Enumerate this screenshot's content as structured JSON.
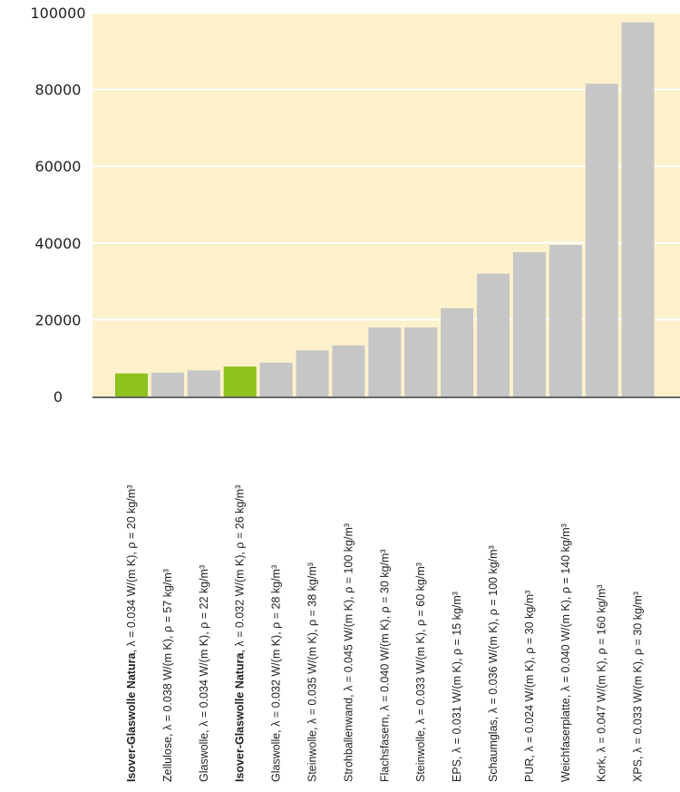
{
  "chart_data": {
    "type": "bar",
    "title": "",
    "xlabel": "",
    "ylabel": "",
    "ylim": [
      0,
      100000
    ],
    "yticks": [
      "0",
      "20000",
      "40000",
      "60000",
      "80000",
      "100000"
    ],
    "grid": true,
    "colors": {
      "background": "#FCF1CB",
      "bar_default": "#C6C6C6",
      "bar_highlight": "#8DC21F",
      "grid": "#FFFFFF",
      "axis": "#333333"
    },
    "categories": [
      {
        "name": "Isover-Glaswolle Natura",
        "props": ", λ = 0.034 W/(m K), ρ = 20 kg/m³",
        "highlight": true
      },
      {
        "name": "Zellulose",
        "props": ", λ = 0.038 W/(m K), ρ = 57 kg/m³",
        "highlight": false
      },
      {
        "name": "Glaswolle",
        "props": ", λ = 0.034 W/(m K), ρ = 22 kg/m³",
        "highlight": false
      },
      {
        "name": "Isover-Glaswolle Natura",
        "props": ", λ = 0.032 W/(m K), ρ = 26 kg/m³",
        "highlight": true
      },
      {
        "name": "Glaswolle",
        "props": ", λ = 0.032 W/(m K), ρ = 28 kg/m³",
        "highlight": false
      },
      {
        "name": "Steinwolle",
        "props": ", λ = 0.035 W/(m K), ρ = 38 kg/m³",
        "highlight": false
      },
      {
        "name": "Strohballenwand",
        "props": ", λ = 0.045 W/(m K), ρ = 100 kg/m³",
        "highlight": false
      },
      {
        "name": "Flachsfasern",
        "props": ", λ = 0.040 W/(m K), ρ = 30 kg/m³",
        "highlight": false
      },
      {
        "name": "Steinwolle",
        "props": ", λ = 0.033 W/(m K), ρ = 60 kg/m³",
        "highlight": false
      },
      {
        "name": "EPS",
        "props": ", λ = 0.031 W/(m K), ρ = 15 kg/m³",
        "highlight": false
      },
      {
        "name": "Schaumglas",
        "props": ", λ = 0.036 W/(m K), ρ = 100 kg/m³",
        "highlight": false
      },
      {
        "name": "PUR",
        "props": ", λ = 0.024 W/(m K), ρ = 30 kg/m³",
        "highlight": false
      },
      {
        "name": "Weichfaserplatte",
        "props": ", λ = 0.040 W/(m K), ρ = 140 kg/m³",
        "highlight": false
      },
      {
        "name": "Kork",
        "props": ", λ = 0.047 W/(m K), ρ = 160 kg/m³",
        "highlight": false
      },
      {
        "name": "XPS",
        "props": ", λ = 0.033 W/(m K), ρ = 30 kg/m³",
        "highlight": false
      }
    ],
    "values": [
      6000,
      6200,
      6800,
      7800,
      8800,
      12000,
      13300,
      18000,
      18000,
      23000,
      32000,
      37600,
      39500,
      81500,
      97500
    ]
  }
}
